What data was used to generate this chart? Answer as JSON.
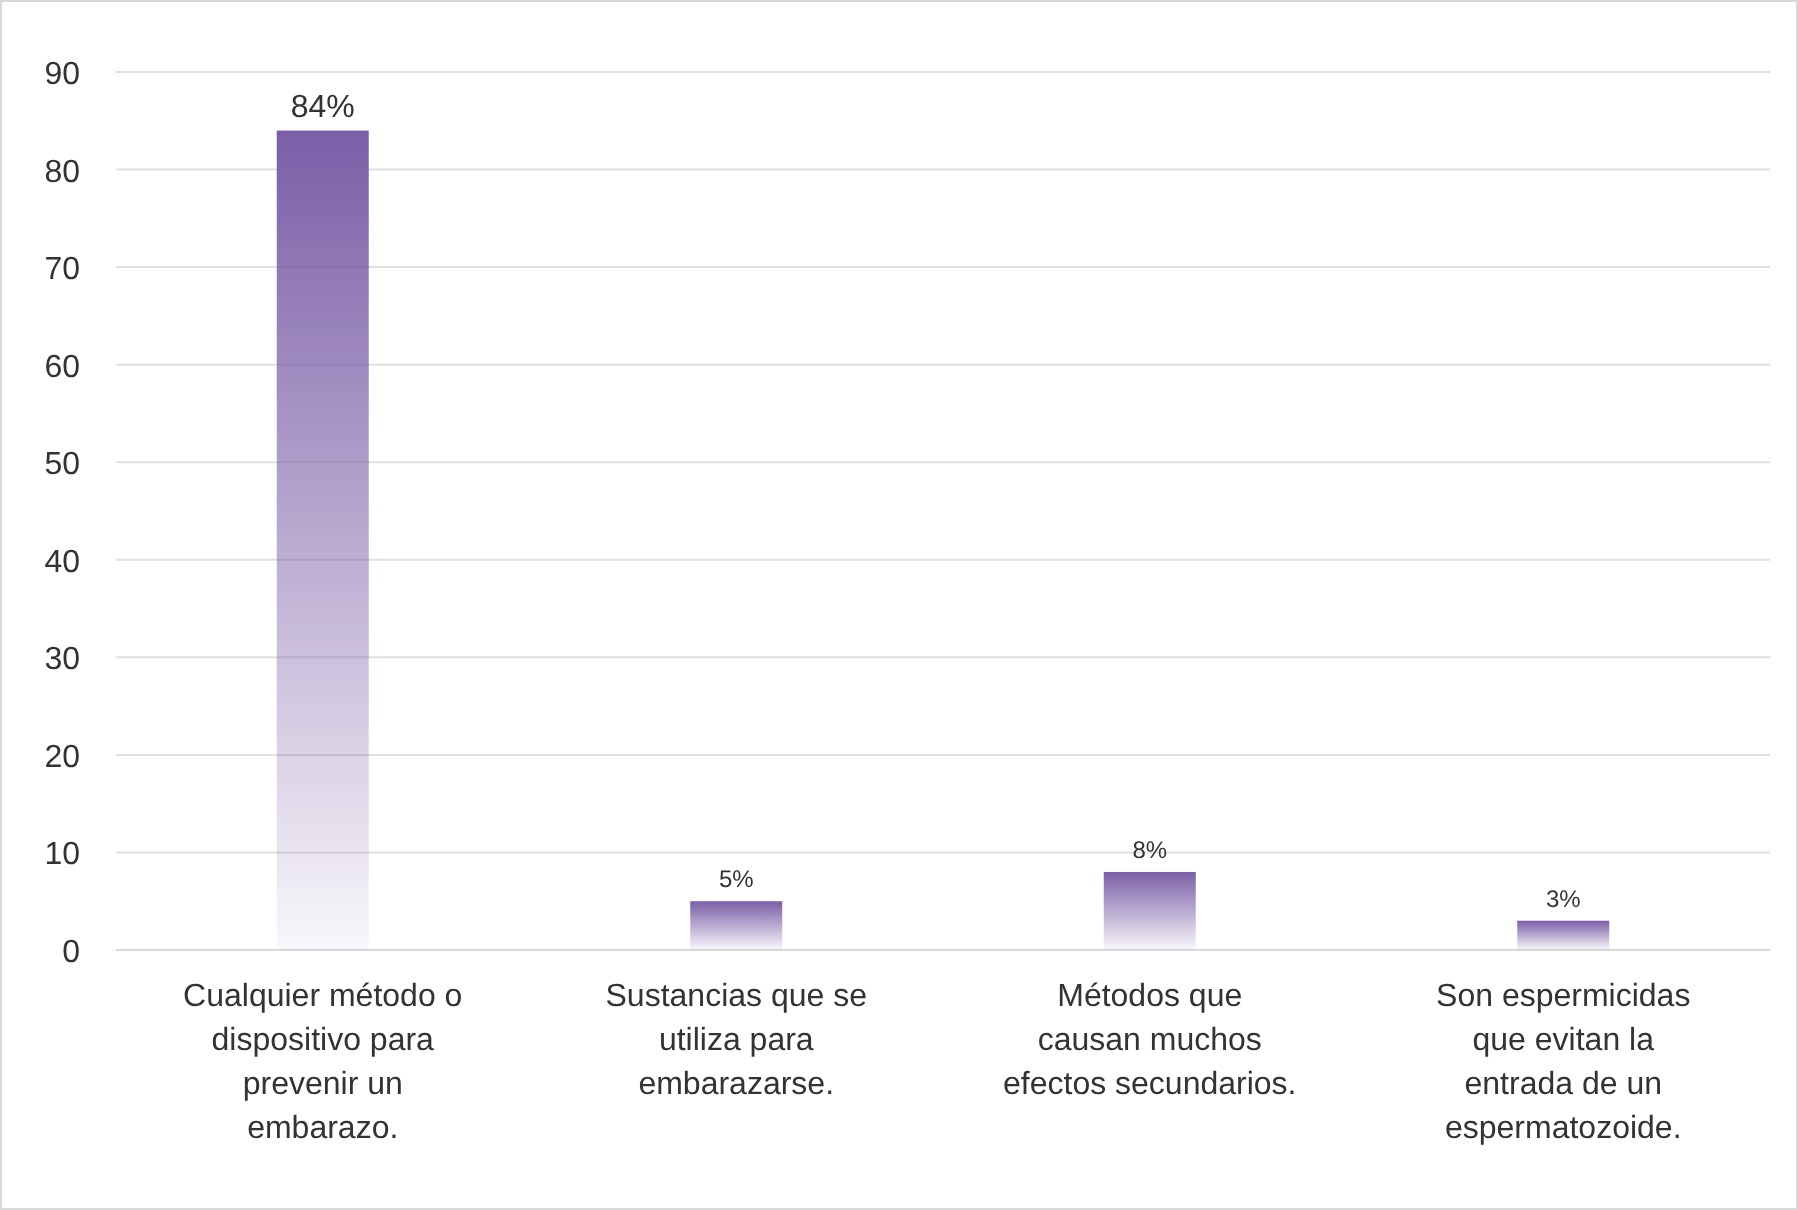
{
  "chart_data": {
    "type": "bar",
    "categories": [
      "Cualquier método o dispositivo para prevenir un embarazo.",
      "Sustancias que se utiliza para embarazarse.",
      "Métodos que causan muchos efectos secundarios.",
      "Son espermicidas que evitan la entrada de un espermatozoide."
    ],
    "values": [
      84,
      5,
      8,
      3
    ],
    "value_labels": [
      "84%",
      "5%",
      "8%",
      "3%"
    ],
    "color": "#7b5ea7",
    "ylim": [
      0,
      90
    ],
    "yticks": [
      0,
      10,
      20,
      30,
      40,
      50,
      60,
      70,
      80,
      90
    ],
    "grid": "y"
  }
}
